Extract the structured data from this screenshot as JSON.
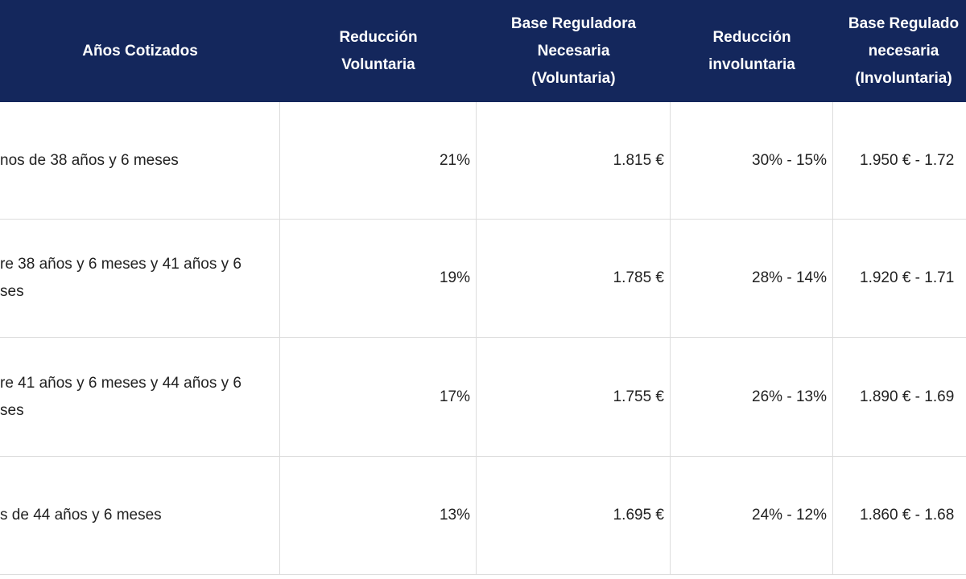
{
  "table": {
    "header": [
      [
        "Años Cotizados"
      ],
      [
        "Reducción",
        "Voluntaria"
      ],
      [
        "Base Reguladora",
        "Necesaria",
        "(Voluntaria)"
      ],
      [
        "Reducción",
        "involuntaria"
      ],
      [
        "Base Regulado",
        "necesaria",
        "(Involuntaria)"
      ]
    ],
    "rows": [
      [
        [
          "nos de 38 años y 6 meses"
        ],
        [
          "21%"
        ],
        [
          "1.815 €"
        ],
        [
          "30% - 15%"
        ],
        [
          "1.950 € - 1.72"
        ]
      ],
      [
        [
          "re 38 años y 6 meses y 41 años y 6",
          "ses"
        ],
        [
          "19%"
        ],
        [
          "1.785 €"
        ],
        [
          "28% - 14%"
        ],
        [
          "1.920 € - 1.71"
        ]
      ],
      [
        [
          "re 41 años y 6 meses y 44 años y 6",
          "ses"
        ],
        [
          "17%"
        ],
        [
          "1.755 €"
        ],
        [
          "26% - 13%"
        ],
        [
          "1.890 € - 1.69"
        ]
      ],
      [
        [
          "s de 44 años y 6 meses"
        ],
        [
          "13%"
        ],
        [
          "1.695 €"
        ],
        [
          "24% - 12%"
        ],
        [
          "1.860 € - 1.68"
        ]
      ]
    ]
  }
}
